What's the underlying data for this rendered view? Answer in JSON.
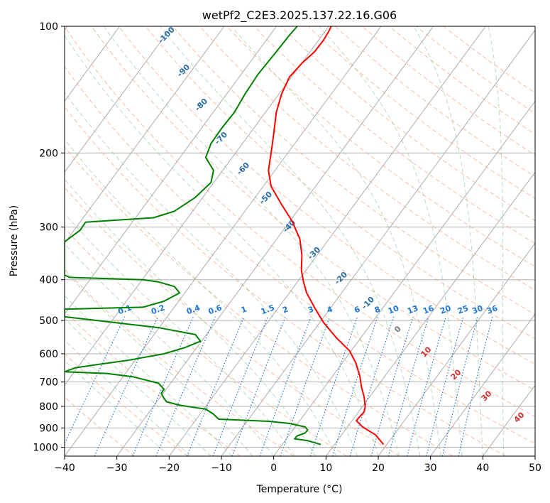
{
  "chart_data": {
    "type": "line",
    "title": "wetPf2_C2E3.2025.137.22.16.G06",
    "xlabel": "Temperature (°C)",
    "ylabel": "Pressure (hPa)",
    "xlim": [
      -40,
      50
    ],
    "ylim": [
      1050,
      100
    ],
    "y_scale": "log",
    "x_ticks": [
      -40,
      -30,
      -20,
      -10,
      0,
      10,
      20,
      30,
      40,
      50
    ],
    "y_ticks": [
      100,
      200,
      300,
      400,
      500,
      600,
      700,
      800,
      900,
      1000
    ],
    "grid": true,
    "series": [
      {
        "role": "temperature",
        "color": "#ff0000",
        "points": [
          [
            21,
            985
          ],
          [
            19.5,
            935
          ],
          [
            17,
            895
          ],
          [
            15.8,
            865
          ],
          [
            16.5,
            845
          ],
          [
            17.3,
            825
          ],
          [
            17.5,
            800
          ],
          [
            17.3,
            760
          ],
          [
            16.8,
            720
          ],
          [
            16.5,
            680
          ],
          [
            15.7,
            630
          ],
          [
            14.5,
            590
          ],
          [
            12,
            550
          ],
          [
            9.5,
            505
          ],
          [
            8,
            470
          ],
          [
            6.3,
            430
          ],
          [
            5.7,
            405
          ],
          [
            5.3,
            380
          ],
          [
            5.4,
            350
          ],
          [
            5,
            320
          ],
          [
            3.5,
            290
          ],
          [
            1.5,
            265
          ],
          [
            -0.5,
            240
          ],
          [
            -1,
            220
          ],
          [
            -0.5,
            200
          ],
          [
            0,
            180
          ],
          [
            0.5,
            160
          ],
          [
            1.5,
            145
          ],
          [
            3,
            132
          ],
          [
            5.5,
            122
          ],
          [
            7.8,
            115
          ],
          [
            9.5,
            108
          ],
          [
            10.5,
            103
          ],
          [
            11,
            100
          ]
        ]
      },
      {
        "role": "dewpoint",
        "color": "#008000",
        "points": [
          [
            9,
            985
          ],
          [
            6.5,
            965
          ],
          [
            4,
            955
          ],
          [
            4.5,
            940
          ],
          [
            6,
            925
          ],
          [
            6.5,
            910
          ],
          [
            6,
            895
          ],
          [
            3,
            878
          ],
          [
            -1,
            868
          ],
          [
            -10.5,
            858
          ],
          [
            -11.5,
            835
          ],
          [
            -13,
            812
          ],
          [
            -18,
            795
          ],
          [
            -20.5,
            780
          ],
          [
            -21,
            765
          ],
          [
            -21.5,
            745
          ],
          [
            -21,
            728
          ],
          [
            -22,
            705
          ],
          [
            -27,
            680
          ],
          [
            -32,
            668
          ],
          [
            -40,
            662
          ],
          [
            -38,
            648
          ],
          [
            -34,
            637
          ],
          [
            -28,
            622
          ],
          [
            -21,
            600
          ],
          [
            -17,
            580
          ],
          [
            -14,
            560
          ],
          [
            -15,
            540
          ],
          [
            -22,
            520
          ],
          [
            -40,
            490
          ],
          [
            -40,
            470
          ],
          [
            -25,
            465
          ],
          [
            -21,
            450
          ],
          [
            -18,
            430
          ],
          [
            -19,
            415
          ],
          [
            -22,
            405
          ],
          [
            -25,
            400
          ],
          [
            -39,
            395
          ],
          [
            -40,
            390
          ],
          [
            -40,
            325
          ],
          [
            -37,
            305
          ],
          [
            -36,
            292
          ],
          [
            -23,
            285
          ],
          [
            -19,
            275
          ],
          [
            -15,
            255
          ],
          [
            -12,
            235
          ],
          [
            -11.5,
            220
          ],
          [
            -13,
            205
          ],
          [
            -12,
            190
          ],
          [
            -10,
            175
          ],
          [
            -7.5,
            160
          ],
          [
            -5.5,
            145
          ],
          [
            -3,
            130
          ],
          [
            0,
            117
          ],
          [
            3,
            105
          ],
          [
            4.5,
            100
          ]
        ]
      }
    ],
    "dry_adiabat_labels": [
      "-100",
      "-90",
      "-80",
      "-70",
      "-60",
      "-50",
      "-40",
      "-30",
      "-20",
      "-10"
    ],
    "moist_adiabat_labels": [
      "0",
      "10",
      "20",
      "30",
      "40"
    ],
    "mixing_ratio_labels": [
      "0.1",
      "0.2",
      "0.4",
      "0.6",
      "1",
      "1.5",
      "2",
      "3",
      "4",
      "6",
      "8",
      "10",
      "13",
      "16",
      "20",
      "25",
      "30",
      "36"
    ],
    "colors": {
      "temperature": "#ff0000",
      "dewpoint": "#008000",
      "dry_adiabat": "#ff9b7a",
      "moist_adiabat": "#7fbf7f",
      "mixing_ratio": "#1f78d6",
      "isotherm": "#7f7f7f"
    }
  }
}
